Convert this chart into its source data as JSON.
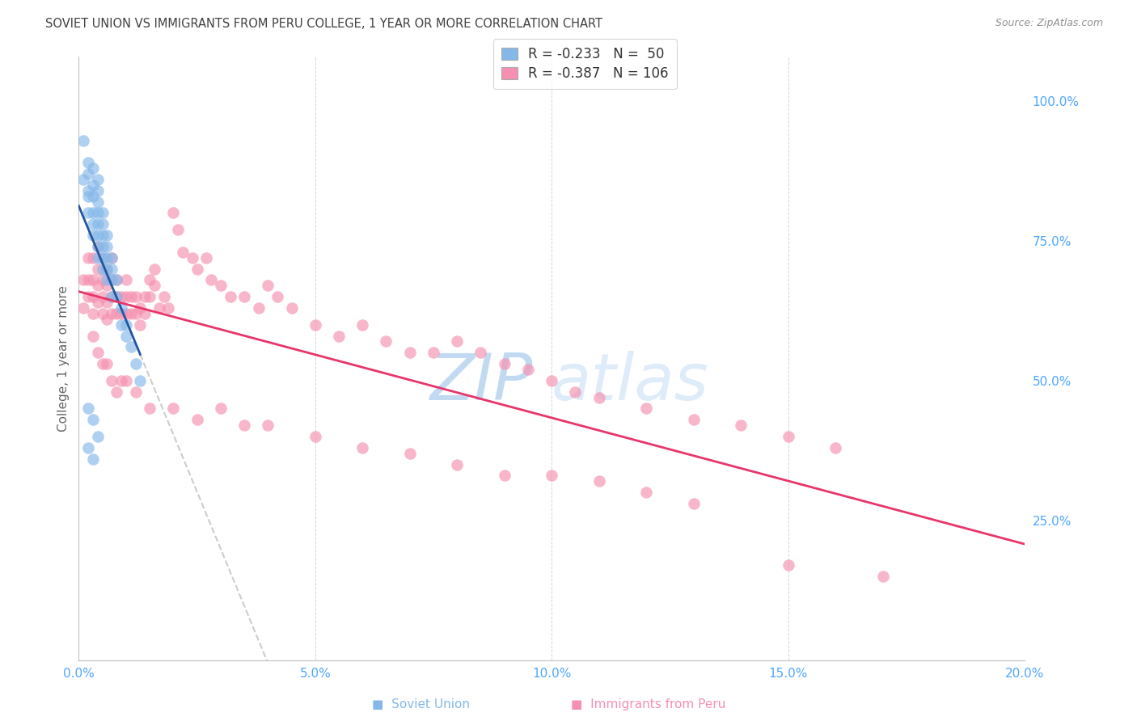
{
  "title": "SOVIET UNION VS IMMIGRANTS FROM PERU COLLEGE, 1 YEAR OR MORE CORRELATION CHART",
  "source": "Source: ZipAtlas.com",
  "ylabel": "College, 1 year or more",
  "xlim": [
    0.0,
    0.2
  ],
  "ylim": [
    0.0,
    1.08
  ],
  "xlabel_vals": [
    0.0,
    0.05,
    0.1,
    0.15,
    0.2
  ],
  "xlabel_labels": [
    "0.0%",
    "5.0%",
    "10.0%",
    "15.0%",
    "20.0%"
  ],
  "ytick_vals": [
    0.25,
    0.5,
    0.75,
    1.0
  ],
  "ytick_labels": [
    "25.0%",
    "50.0%",
    "75.0%",
    "100.0%"
  ],
  "soviet_R": -0.233,
  "soviet_N": 50,
  "peru_R": -0.387,
  "peru_N": 106,
  "soviet_color": "#85b8e8",
  "peru_color": "#f590b0",
  "soviet_line_color": "#2255a0",
  "peru_line_color": "#e8356a",
  "dashed_color": "#c0c0c0",
  "grid_color": "#d0d0d0",
  "title_color": "#404040",
  "source_color": "#909090",
  "right_label_color": "#4da6ff",
  "bottom_label_color": "#4da6ff",
  "watermark_color": "#cce0f5",
  "background": "#ffffff",
  "soviet_x": [
    0.001,
    0.001,
    0.002,
    0.002,
    0.002,
    0.002,
    0.002,
    0.003,
    0.003,
    0.003,
    0.003,
    0.003,
    0.003,
    0.004,
    0.004,
    0.004,
    0.004,
    0.004,
    0.004,
    0.004,
    0.004,
    0.005,
    0.005,
    0.005,
    0.005,
    0.005,
    0.005,
    0.006,
    0.006,
    0.006,
    0.006,
    0.006,
    0.007,
    0.007,
    0.007,
    0.007,
    0.008,
    0.008,
    0.009,
    0.009,
    0.01,
    0.01,
    0.011,
    0.012,
    0.013,
    0.002,
    0.003,
    0.004,
    0.002,
    0.003
  ],
  "soviet_y": [
    0.93,
    0.86,
    0.89,
    0.87,
    0.84,
    0.83,
    0.8,
    0.88,
    0.85,
    0.83,
    0.8,
    0.78,
    0.76,
    0.86,
    0.84,
    0.82,
    0.8,
    0.78,
    0.76,
    0.74,
    0.72,
    0.8,
    0.78,
    0.76,
    0.74,
    0.72,
    0.7,
    0.76,
    0.74,
    0.72,
    0.7,
    0.68,
    0.72,
    0.7,
    0.68,
    0.65,
    0.68,
    0.65,
    0.63,
    0.6,
    0.6,
    0.58,
    0.56,
    0.53,
    0.5,
    0.45,
    0.43,
    0.4,
    0.38,
    0.36
  ],
  "peru_x": [
    0.001,
    0.001,
    0.002,
    0.002,
    0.002,
    0.003,
    0.003,
    0.003,
    0.003,
    0.004,
    0.004,
    0.004,
    0.004,
    0.005,
    0.005,
    0.005,
    0.005,
    0.006,
    0.006,
    0.006,
    0.006,
    0.007,
    0.007,
    0.007,
    0.007,
    0.008,
    0.008,
    0.008,
    0.009,
    0.009,
    0.01,
    0.01,
    0.01,
    0.011,
    0.011,
    0.012,
    0.012,
    0.013,
    0.013,
    0.014,
    0.014,
    0.015,
    0.015,
    0.016,
    0.016,
    0.017,
    0.018,
    0.019,
    0.02,
    0.021,
    0.022,
    0.024,
    0.025,
    0.027,
    0.028,
    0.03,
    0.032,
    0.035,
    0.038,
    0.04,
    0.042,
    0.045,
    0.05,
    0.055,
    0.06,
    0.065,
    0.07,
    0.075,
    0.08,
    0.085,
    0.09,
    0.095,
    0.1,
    0.105,
    0.11,
    0.12,
    0.13,
    0.14,
    0.15,
    0.16,
    0.003,
    0.004,
    0.005,
    0.006,
    0.007,
    0.008,
    0.009,
    0.01,
    0.012,
    0.015,
    0.02,
    0.025,
    0.03,
    0.035,
    0.04,
    0.05,
    0.06,
    0.07,
    0.08,
    0.09,
    0.1,
    0.11,
    0.12,
    0.13,
    0.15,
    0.17
  ],
  "peru_y": [
    0.68,
    0.63,
    0.72,
    0.68,
    0.65,
    0.72,
    0.68,
    0.65,
    0.62,
    0.74,
    0.7,
    0.67,
    0.64,
    0.72,
    0.68,
    0.65,
    0.62,
    0.7,
    0.67,
    0.64,
    0.61,
    0.72,
    0.68,
    0.65,
    0.62,
    0.68,
    0.65,
    0.62,
    0.65,
    0.62,
    0.68,
    0.65,
    0.62,
    0.65,
    0.62,
    0.65,
    0.62,
    0.63,
    0.6,
    0.65,
    0.62,
    0.68,
    0.65,
    0.7,
    0.67,
    0.63,
    0.65,
    0.63,
    0.8,
    0.77,
    0.73,
    0.72,
    0.7,
    0.72,
    0.68,
    0.67,
    0.65,
    0.65,
    0.63,
    0.67,
    0.65,
    0.63,
    0.6,
    0.58,
    0.6,
    0.57,
    0.55,
    0.55,
    0.57,
    0.55,
    0.53,
    0.52,
    0.5,
    0.48,
    0.47,
    0.45,
    0.43,
    0.42,
    0.4,
    0.38,
    0.58,
    0.55,
    0.53,
    0.53,
    0.5,
    0.48,
    0.5,
    0.5,
    0.48,
    0.45,
    0.45,
    0.43,
    0.45,
    0.42,
    0.42,
    0.4,
    0.38,
    0.37,
    0.35,
    0.33,
    0.33,
    0.32,
    0.3,
    0.28,
    0.17,
    0.15
  ]
}
